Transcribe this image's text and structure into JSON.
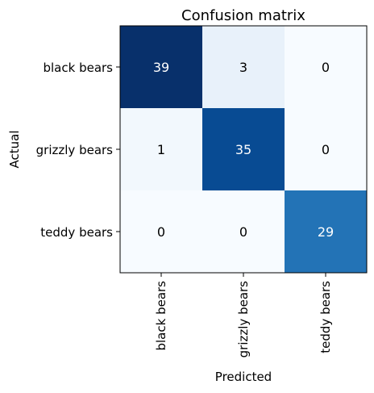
{
  "chart_data": {
    "type": "heatmap",
    "title": "Confusion matrix",
    "xlabel": "Predicted",
    "ylabel": "Actual",
    "row_labels": [
      "black bears",
      "grizzly bears",
      "teddy bears"
    ],
    "col_labels": [
      "black bears",
      "grizzly bears",
      "teddy bears"
    ],
    "values": [
      [
        39,
        3,
        0
      ],
      [
        1,
        35,
        0
      ],
      [
        0,
        0,
        29
      ]
    ],
    "colormap": "Blues",
    "grid": false,
    "colors": {
      "low": "#f7fbff",
      "high": "#08306b",
      "text_dark_bg": "#ffffff",
      "text_light_bg": "#000000",
      "axis": "#000000"
    }
  }
}
